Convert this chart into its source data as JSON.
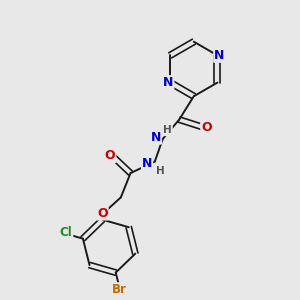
{
  "background_color": "#e8e8e8",
  "bond_color": "#1a1a1a",
  "atom_colors": {
    "N": "#0000cc",
    "O": "#cc0000",
    "Br": "#cc6600",
    "Cl": "#228B22",
    "C": "#1a1a1a",
    "H": "#555555"
  },
  "figsize": [
    3.0,
    3.0
  ],
  "dpi": 100
}
